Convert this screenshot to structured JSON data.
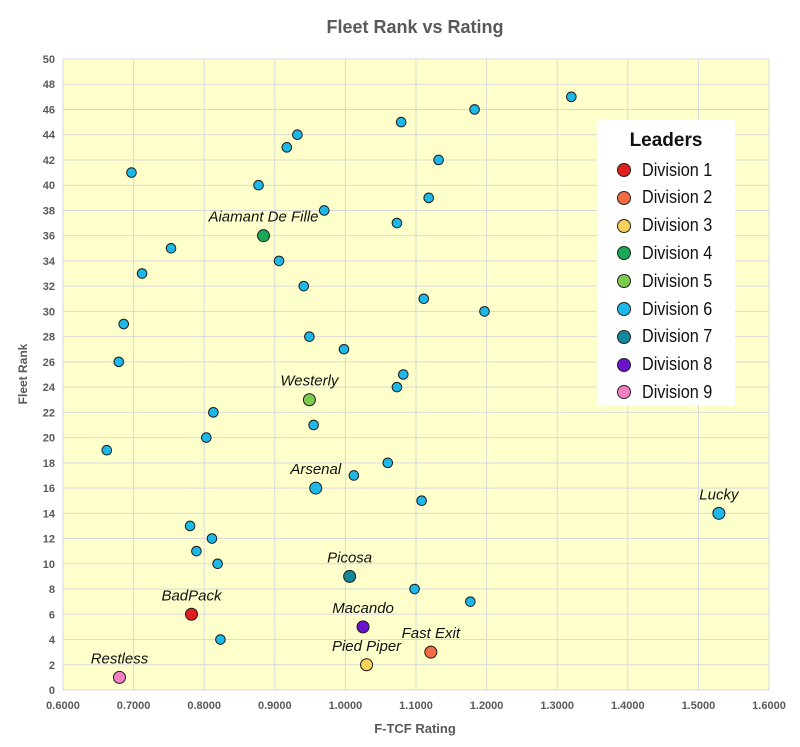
{
  "chart_data": {
    "type": "scatter",
    "title": "Fleet Rank vs Rating",
    "xlabel": "F-TCF Rating",
    "ylabel": "Fleet Rank",
    "xlim": [
      0.6,
      1.6
    ],
    "ylim": [
      0,
      50
    ],
    "x_ticks": [
      "0.6000",
      "0.7000",
      "0.8000",
      "0.9000",
      "1.0000",
      "1.1000",
      "1.2000",
      "1.3000",
      "1.4000",
      "1.5000",
      "1.6000"
    ],
    "y_ticks": [
      "0",
      "2",
      "4",
      "6",
      "8",
      "10",
      "12",
      "14",
      "16",
      "18",
      "20",
      "22",
      "24",
      "26",
      "28",
      "30",
      "32",
      "34",
      "36",
      "38",
      "40",
      "42",
      "44",
      "46",
      "48",
      "50"
    ],
    "x_tick_values": [
      0.6,
      0.7,
      0.8,
      0.9,
      1.0,
      1.1,
      1.2,
      1.3,
      1.4,
      1.5,
      1.6
    ],
    "y_tick_values": [
      0,
      2,
      4,
      6,
      8,
      10,
      12,
      14,
      16,
      18,
      20,
      22,
      24,
      26,
      28,
      30,
      32,
      34,
      36,
      38,
      40,
      42,
      44,
      46,
      48,
      50
    ],
    "grid": true,
    "plot_background": "#FFFFCC",
    "legend_position": "top-right",
    "legend_title": "Leaders",
    "series": [
      {
        "name": "Division 1",
        "color": "#E0201E",
        "points": [
          {
            "x": 0.782,
            "y": 6,
            "label": "BadPack"
          }
        ]
      },
      {
        "name": "Division 2",
        "color": "#F26B43",
        "points": [
          {
            "x": 1.121,
            "y": 3,
            "label": "Fast Exit"
          }
        ]
      },
      {
        "name": "Division 3",
        "color": "#F9D25C",
        "points": [
          {
            "x": 1.03,
            "y": 2,
            "label": "Pied Piper"
          }
        ]
      },
      {
        "name": "Division 4",
        "color": "#16A852",
        "points": [
          {
            "x": 0.884,
            "y": 36,
            "label": "Aiamant De Fille"
          }
        ]
      },
      {
        "name": "Division 5",
        "color": "#7CCB4E",
        "points": [
          {
            "x": 0.949,
            "y": 23,
            "label": "Westerly"
          }
        ]
      },
      {
        "name": "Division 6",
        "color": "#1EB8E8",
        "points": [
          {
            "x": 0.958,
            "y": 16,
            "label": "Arsenal"
          },
          {
            "x": 1.529,
            "y": 14,
            "label": "Lucky"
          },
          {
            "x": 1.32,
            "y": 47
          },
          {
            "x": 1.183,
            "y": 46
          },
          {
            "x": 1.079,
            "y": 45
          },
          {
            "x": 0.932,
            "y": 44
          },
          {
            "x": 0.917,
            "y": 43
          },
          {
            "x": 1.132,
            "y": 42
          },
          {
            "x": 0.697,
            "y": 41
          },
          {
            "x": 0.877,
            "y": 40
          },
          {
            "x": 1.118,
            "y": 39
          },
          {
            "x": 0.97,
            "y": 38
          },
          {
            "x": 1.073,
            "y": 37
          },
          {
            "x": 0.753,
            "y": 35
          },
          {
            "x": 0.906,
            "y": 34
          },
          {
            "x": 0.712,
            "y": 33
          },
          {
            "x": 0.941,
            "y": 32
          },
          {
            "x": 1.111,
            "y": 31
          },
          {
            "x": 1.197,
            "y": 30
          },
          {
            "x": 0.686,
            "y": 29
          },
          {
            "x": 0.949,
            "y": 28
          },
          {
            "x": 0.998,
            "y": 27
          },
          {
            "x": 0.679,
            "y": 26
          },
          {
            "x": 1.082,
            "y": 25
          },
          {
            "x": 1.073,
            "y": 24
          },
          {
            "x": 0.813,
            "y": 22
          },
          {
            "x": 0.955,
            "y": 21
          },
          {
            "x": 0.803,
            "y": 20
          },
          {
            "x": 0.662,
            "y": 19
          },
          {
            "x": 1.06,
            "y": 18
          },
          {
            "x": 1.012,
            "y": 17
          },
          {
            "x": 1.108,
            "y": 15
          },
          {
            "x": 0.78,
            "y": 13
          },
          {
            "x": 0.811,
            "y": 12
          },
          {
            "x": 0.789,
            "y": 11
          },
          {
            "x": 0.819,
            "y": 10
          },
          {
            "x": 1.098,
            "y": 8
          },
          {
            "x": 1.177,
            "y": 7
          },
          {
            "x": 0.823,
            "y": 4
          }
        ]
      },
      {
        "name": "Division 7",
        "color": "#13879C",
        "points": [
          {
            "x": 1.006,
            "y": 9,
            "label": "Picosa"
          }
        ]
      },
      {
        "name": "Division 8",
        "color": "#6A12CC",
        "points": [
          {
            "x": 1.025,
            "y": 5,
            "label": "Macando"
          }
        ]
      },
      {
        "name": "Division 9",
        "color": "#F57FC6",
        "points": [
          {
            "x": 0.68,
            "y": 1,
            "label": "Restless"
          }
        ]
      }
    ]
  }
}
